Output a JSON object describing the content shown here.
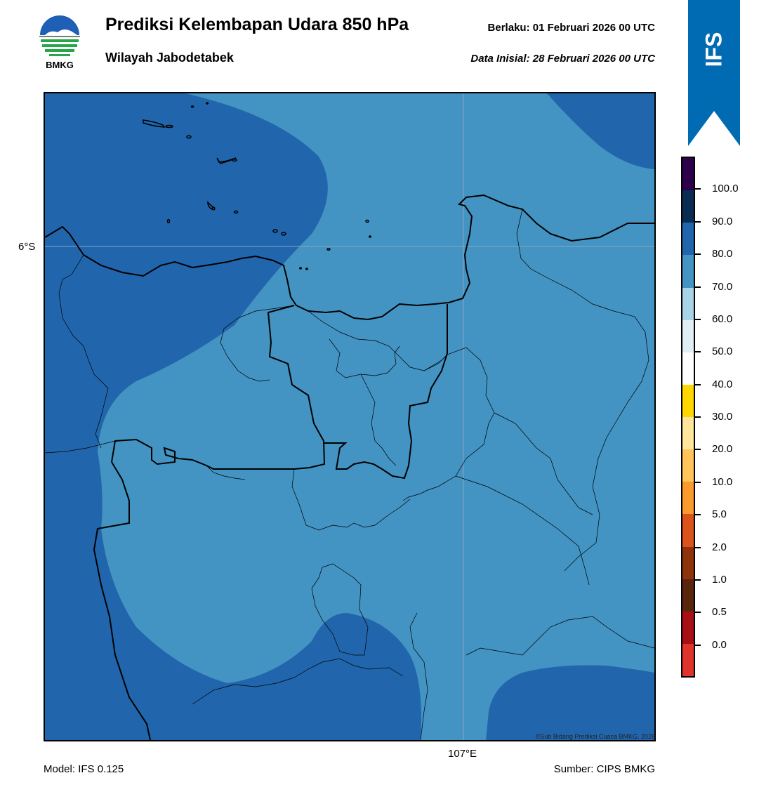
{
  "header": {
    "title": "Prediksi Kelembapan Udara 850 hPa",
    "region": "Wilayah Jabodetabek",
    "valid_text": "Berlaku:  01 Februari 2026 00 UTC",
    "init_text": "Data Inisial:  28 Februari 2026 00 UTC",
    "logo_text": "BMKG",
    "model_badge": "IFS"
  },
  "map": {
    "lat_label": "6°S",
    "lon_label": "107°E",
    "copyright": "©Sub Bidang Prediksi Cuaca BMKG, 2026",
    "colors": {
      "humidity_70_80": "#4393c3",
      "humidity_80_90": "#2166ac",
      "coastline": "#000000",
      "border": "#000000"
    }
  },
  "colorbar": {
    "labels": [
      "100.0",
      "90.0",
      "80.0",
      "70.0",
      "60.0",
      "50.0",
      "40.0",
      "30.0",
      "20.0",
      "10.0",
      "5.0",
      "2.0",
      "1.0",
      "0.5",
      "0.0"
    ],
    "colors": [
      "#2d004b",
      "#0b2c52",
      "#2166ac",
      "#4393c3",
      "#a9d3e6",
      "#e1eef6",
      "#ffffff",
      "#ffd700",
      "#ffe69a",
      "#ffc55a",
      "#f99a2b",
      "#d9531a",
      "#8e3309",
      "#5a250d",
      "#a50f15",
      "#e0332a"
    ]
  },
  "footer": {
    "model": "Model: IFS 0.125",
    "source": "Sumber: CIPS BMKG"
  }
}
